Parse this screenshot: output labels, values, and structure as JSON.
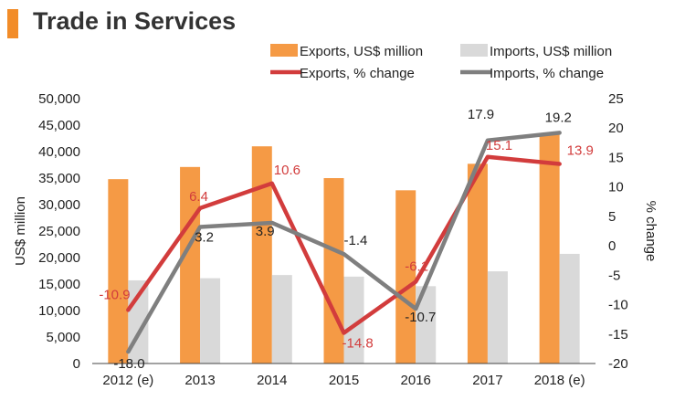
{
  "title": "Trade in Services",
  "chart_data": {
    "type": "bar",
    "categories": [
      "2012 (e)",
      "2013",
      "2014",
      "2015",
      "2016",
      "2017",
      "2018 (e)"
    ],
    "series": [
      {
        "name": "Exports, US$ million",
        "kind": "bar",
        "axis": "left",
        "color": "#f59a45",
        "values": [
          34800,
          37100,
          41000,
          35000,
          32700,
          37700,
          43400
        ]
      },
      {
        "name": "Imports, US$ million",
        "kind": "bar",
        "axis": "left",
        "color": "#d9d9d9",
        "values": [
          15700,
          16100,
          16700,
          16400,
          14600,
          17400,
          20700
        ]
      },
      {
        "name": "Exports, % change",
        "kind": "line",
        "axis": "right",
        "color": "#d23c3c",
        "values": [
          -10.9,
          6.4,
          10.6,
          -14.8,
          -6.1,
          15.1,
          13.9
        ],
        "labels": [
          "-10.9",
          "6.4",
          "10.6",
          "-14.8",
          "-6.1",
          "15.1",
          "13.9"
        ]
      },
      {
        "name": "Imports, % change",
        "kind": "line",
        "axis": "right",
        "color": "#7f7f7f",
        "values": [
          -18.0,
          3.2,
          3.9,
          -1.4,
          -10.7,
          17.9,
          19.2
        ],
        "labels": [
          "-18.0",
          "3.2",
          "3.9",
          "-1.4",
          "-10.7",
          "17.9",
          "19.2"
        ]
      }
    ],
    "ylabel": "US$ million",
    "y2label": "% change",
    "ylim": [
      0,
      50000
    ],
    "y_ticks": [
      "0",
      "5,000",
      "10,000",
      "15,000",
      "20,000",
      "25,000",
      "30,000",
      "35,000",
      "40,000",
      "45,000",
      "50,000"
    ],
    "y2lim": [
      -20,
      25
    ],
    "y2_ticks": [
      "-20",
      "-15",
      "-10",
      "-5",
      "0",
      "5",
      "10",
      "15",
      "20",
      "25"
    ],
    "legend": "top"
  }
}
